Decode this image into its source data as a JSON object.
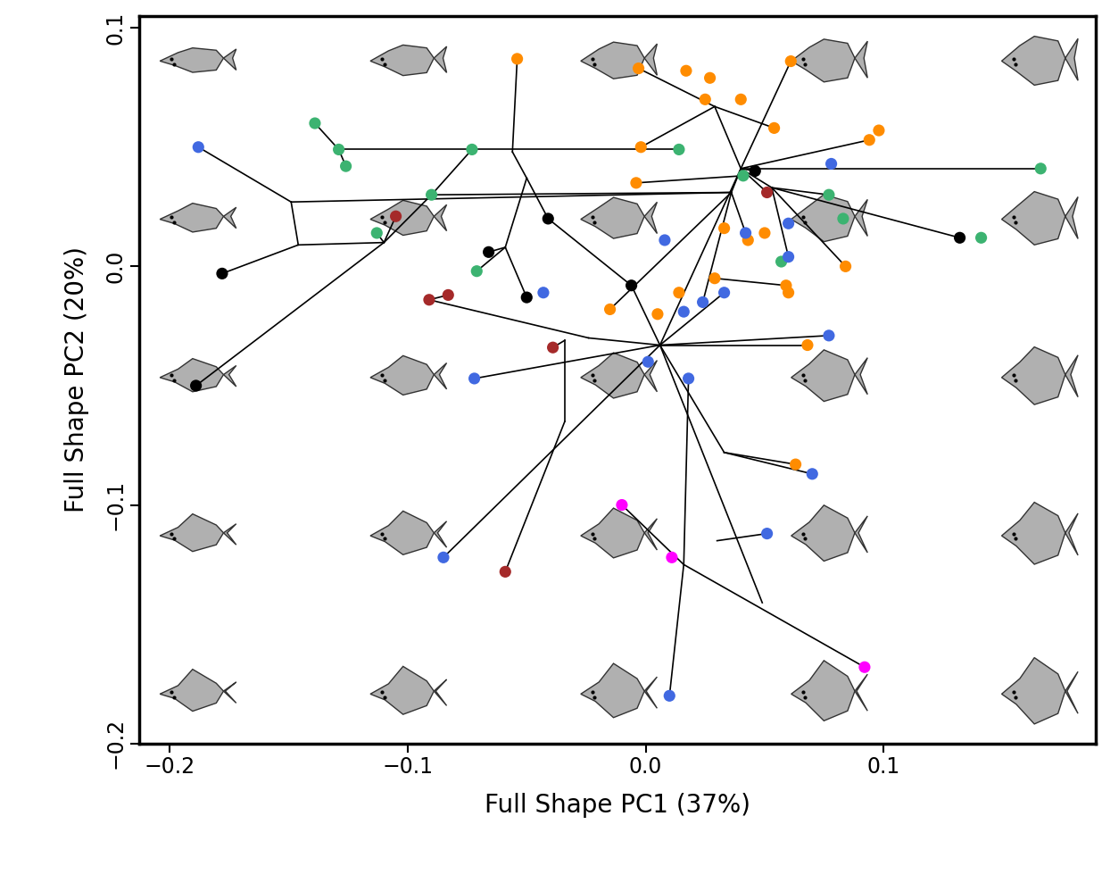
{
  "chart_data": {
    "type": "scatter",
    "x_label": "Full Shape PC1 (37%)",
    "y_label": "Full Shape PC2 (20%)",
    "xlim": [
      -0.213,
      0.189
    ],
    "ylim": [
      -0.2,
      0.105
    ],
    "xticks": [
      {
        "value": -0.2,
        "label": "−0.2"
      },
      {
        "value": -0.1,
        "label": "−0.1"
      },
      0.0,
      0.1
    ],
    "yticks": [
      {
        "value": -0.2,
        "label": "−0.2"
      },
      {
        "value": -0.1,
        "label": "−0.1"
      },
      0.0,
      0.1
    ],
    "grid": false,
    "series": [
      {
        "color": "#ff8c00",
        "marker": "circle",
        "x": [
          -0.054,
          -0.003,
          0.017,
          0.027,
          0.025,
          0.04,
          0.061,
          0.054,
          -0.002,
          0.094,
          0.098,
          -0.004,
          0.033,
          0.043,
          0.05,
          0.084,
          0.059,
          0.06,
          0.029,
          0.014,
          0.005,
          -0.015,
          0.068,
          0.063
        ],
        "y": [
          0.087,
          0.083,
          0.082,
          0.079,
          0.07,
          0.07,
          0.086,
          0.058,
          0.05,
          0.053,
          0.057,
          0.035,
          0.016,
          0.011,
          0.014,
          0.0,
          -0.008,
          -0.011,
          -0.005,
          -0.011,
          -0.02,
          -0.018,
          -0.033,
          -0.083
        ]
      },
      {
        "color": "#3cb371",
        "marker": "circle",
        "x": [
          -0.139,
          -0.129,
          -0.126,
          -0.073,
          0.014,
          0.166,
          -0.09,
          -0.113,
          -0.071,
          0.041,
          0.077,
          0.083,
          0.057,
          0.141
        ],
        "y": [
          0.06,
          0.049,
          0.042,
          0.049,
          0.049,
          0.041,
          0.03,
          0.014,
          -0.002,
          0.038,
          0.03,
          0.02,
          0.002,
          0.012
        ]
      },
      {
        "color": "#4169e1",
        "marker": "circle",
        "x": [
          -0.188,
          0.078,
          0.008,
          0.06,
          0.042,
          0.06,
          -0.043,
          0.033,
          0.024,
          0.016,
          0.077,
          -0.072,
          0.001,
          0.018,
          0.07,
          0.051,
          -0.085,
          0.01
        ],
        "y": [
          0.05,
          0.043,
          0.011,
          0.018,
          0.014,
          0.004,
          -0.011,
          -0.011,
          -0.015,
          -0.019,
          -0.029,
          -0.047,
          -0.04,
          -0.047,
          -0.087,
          -0.112,
          -0.122,
          -0.18
        ]
      },
      {
        "color": "#000000",
        "marker": "circle",
        "x": [
          0.046,
          -0.041,
          -0.178,
          -0.189,
          -0.066,
          -0.05,
          -0.006,
          0.132
        ],
        "y": [
          0.04,
          0.02,
          -0.003,
          -0.05,
          0.006,
          -0.013,
          -0.008,
          0.012
        ]
      },
      {
        "color": "#a52a2a",
        "marker": "circle",
        "x": [
          -0.105,
          0.051,
          -0.083,
          -0.091,
          -0.039,
          -0.059
        ],
        "y": [
          0.021,
          0.031,
          -0.012,
          -0.014,
          -0.034,
          -0.128
        ]
      },
      {
        "color": "#ff00ff",
        "marker": "circle",
        "x": [
          -0.01,
          0.011,
          0.092
        ],
        "y": [
          -0.1,
          -0.122,
          -0.168
        ]
      }
    ],
    "segments": [
      [
        -0.188,
        0.05,
        -0.149,
        0.027
      ],
      [
        -0.149,
        0.027,
        -0.146,
        0.009
      ],
      [
        -0.146,
        0.009,
        -0.178,
        -0.003
      ],
      [
        -0.149,
        0.027,
        0.036,
        0.031
      ],
      [
        -0.146,
        0.009,
        -0.11,
        0.01
      ],
      [
        -0.11,
        0.01,
        -0.113,
        0.014
      ],
      [
        -0.11,
        0.01,
        -0.105,
        0.021
      ],
      [
        -0.11,
        0.01,
        -0.189,
        -0.05
      ],
      [
        -0.11,
        0.01,
        -0.09,
        0.03
      ],
      [
        -0.139,
        0.06,
        -0.129,
        0.049
      ],
      [
        -0.129,
        0.049,
        -0.126,
        0.042
      ],
      [
        -0.129,
        0.049,
        0.014,
        0.049
      ],
      [
        -0.09,
        0.03,
        -0.073,
        0.049
      ],
      [
        -0.09,
        0.03,
        0.036,
        0.031
      ],
      [
        -0.056,
        0.048,
        -0.054,
        0.087
      ],
      [
        -0.056,
        0.048,
        -0.05,
        0.037
      ],
      [
        -0.05,
        0.037,
        -0.041,
        0.02
      ],
      [
        -0.05,
        0.037,
        -0.059,
        0.008
      ],
      [
        -0.059,
        0.008,
        -0.05,
        -0.013
      ],
      [
        -0.059,
        0.008,
        -0.071,
        -0.002
      ],
      [
        -0.066,
        0.006,
        -0.059,
        0.008
      ],
      [
        -0.041,
        0.02,
        -0.006,
        -0.008
      ],
      [
        -0.006,
        -0.008,
        0.006,
        -0.033
      ],
      [
        -0.091,
        -0.014,
        -0.024,
        -0.03
      ],
      [
        -0.083,
        -0.012,
        -0.091,
        -0.014
      ],
      [
        -0.024,
        -0.03,
        0.006,
        -0.033
      ],
      [
        -0.039,
        -0.034,
        -0.034,
        -0.031
      ],
      [
        -0.034,
        -0.031,
        -0.034,
        -0.065
      ],
      [
        -0.072,
        -0.047,
        0.006,
        -0.033
      ],
      [
        -0.085,
        -0.122,
        0.006,
        -0.033
      ],
      [
        -0.059,
        -0.128,
        -0.034,
        -0.065
      ],
      [
        0.006,
        -0.033,
        0.04,
        0.041
      ],
      [
        0.006,
        -0.033,
        0.033,
        -0.011
      ],
      [
        0.006,
        -0.033,
        0.077,
        -0.029
      ],
      [
        0.006,
        -0.033,
        0.033,
        -0.078
      ],
      [
        0.033,
        -0.078,
        0.063,
        -0.083
      ],
      [
        0.033,
        -0.078,
        0.07,
        -0.087
      ],
      [
        0.006,
        -0.033,
        0.049,
        -0.141
      ],
      [
        0.03,
        -0.115,
        0.051,
        -0.112
      ],
      [
        -0.01,
        -0.1,
        0.016,
        -0.125
      ],
      [
        0.016,
        -0.125,
        0.092,
        -0.168
      ],
      [
        0.016,
        -0.125,
        0.01,
        -0.18
      ],
      [
        0.016,
        -0.125,
        0.018,
        -0.047
      ],
      [
        0.029,
        0.067,
        -0.003,
        0.083
      ],
      [
        0.029,
        0.067,
        0.054,
        0.058
      ],
      [
        0.029,
        0.067,
        0.04,
        0.041
      ],
      [
        0.04,
        0.041,
        0.061,
        0.086
      ],
      [
        0.04,
        0.041,
        0.166,
        0.041
      ],
      [
        0.04,
        0.041,
        0.094,
        0.053
      ],
      [
        0.053,
        0.033,
        0.132,
        0.012
      ],
      [
        0.053,
        0.033,
        0.084,
        0.0
      ],
      [
        0.053,
        0.033,
        0.077,
        0.03
      ],
      [
        -0.004,
        0.035,
        0.041,
        0.038
      ],
      [
        -0.002,
        0.05,
        0.029,
        0.067
      ],
      [
        0.04,
        0.041,
        0.046,
        0.04
      ],
      [
        0.04,
        0.041,
        0.053,
        0.033
      ],
      [
        0.036,
        0.031,
        0.04,
        0.041
      ],
      [
        0.036,
        0.031,
        0.024,
        -0.015
      ],
      [
        0.036,
        0.031,
        0.042,
        0.014
      ],
      [
        0.053,
        0.033,
        0.06,
        0.004
      ],
      [
        0.04,
        0.041,
        0.051,
        0.031
      ],
      [
        0.036,
        0.031,
        -0.015,
        -0.018
      ],
      [
        0.006,
        -0.033,
        0.068,
        -0.033
      ],
      [
        0.029,
        -0.005,
        0.059,
        -0.008
      ]
    ]
  }
}
